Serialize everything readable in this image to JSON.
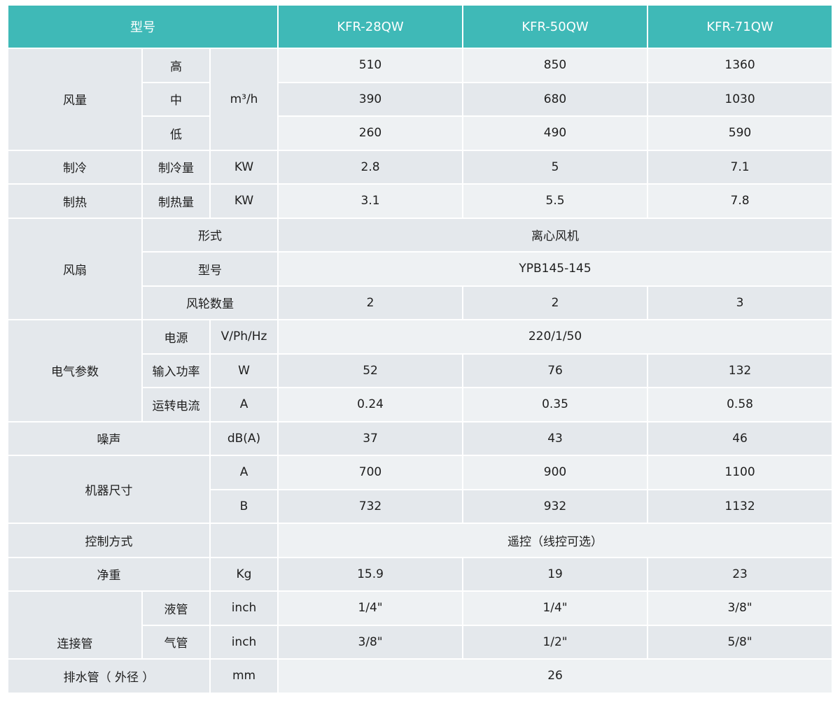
{
  "header": {
    "label": "型号",
    "models": [
      "KFR-28QW",
      "KFR-50QW",
      "KFR-71QW"
    ]
  },
  "rows": [
    [
      "风量",
      "高",
      "m³/h",
      "510",
      "850",
      "1360"
    ],
    [
      "中",
      "390",
      "680",
      "1030"
    ],
    [
      "低",
      "260",
      "490",
      "590"
    ],
    [
      "制冷",
      "制冷量",
      "KW",
      "2.8",
      "5",
      "7.1"
    ],
    [
      "制热",
      "制热量",
      "KW",
      "3.1",
      "5.5",
      "7.8"
    ],
    [
      "风扇",
      "形式",
      "离心风机"
    ],
    [
      "型号",
      "YPB145-145"
    ],
    [
      "风轮数量",
      "2",
      "2",
      "3"
    ],
    [
      "电气参数",
      "电源",
      "V/Ph/Hz",
      "220/1/50"
    ],
    [
      "输入功率",
      "W",
      "52",
      "76",
      "132"
    ],
    [
      "运转电流",
      "A",
      "0.24",
      "0.35",
      "0.58"
    ],
    [
      "噪声",
      "dB(A)",
      "37",
      "43",
      "46"
    ],
    [
      "机器尺寸",
      "A",
      "700",
      "900",
      "1100"
    ],
    [
      "B",
      "732",
      "932",
      "1132"
    ],
    [
      "控制方式",
      "",
      "遥控（线控可选）"
    ],
    [
      "净重",
      "Kg",
      "15.9",
      "19",
      "23"
    ],
    [
      "连接管",
      "液管",
      "inch",
      "1/4\"",
      "1/4\"",
      "3/8\""
    ],
    [
      "气管",
      "inch",
      "3/8\"",
      "1/2\"",
      "5/8\""
    ],
    [
      "排水管（ 外径 ）",
      "mm",
      "26"
    ]
  ],
  "colors": {
    "header": "#3fb9b7",
    "cell_light": "#eef1f3",
    "cell_gray": "#e4e8ec"
  }
}
